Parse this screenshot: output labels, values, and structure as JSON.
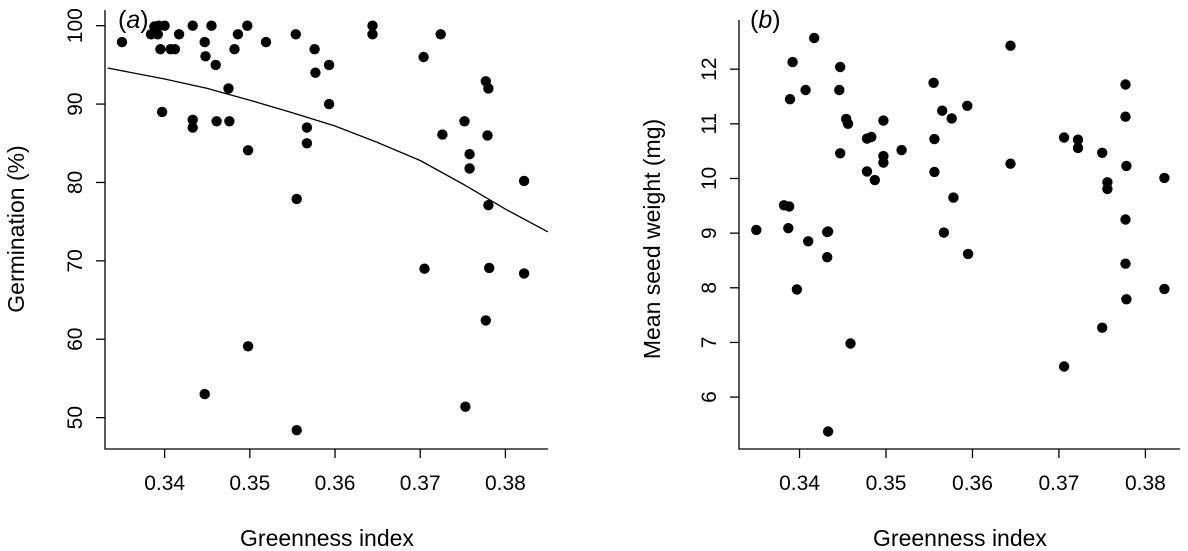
{
  "chart_data": [
    {
      "type": "scatter",
      "panel_label_open": "(",
      "panel_label_letter": "a",
      "panel_label_close": ")",
      "xlabel": "Greenness index",
      "ylabel": "Germination (%)",
      "xlim": [
        0.333,
        0.385
      ],
      "ylim": [
        46,
        102
      ],
      "xticks": [
        0.34,
        0.35,
        0.36,
        0.37,
        0.38
      ],
      "xtick_labels": [
        "0.34",
        "0.35",
        "0.36",
        "0.37",
        "0.38"
      ],
      "yticks": [
        50,
        60,
        70,
        80,
        90,
        100
      ],
      "ytick_labels": [
        "50",
        "60",
        "70",
        "80",
        "90",
        "100"
      ],
      "point_color": "#000000",
      "points": [
        [
          0.335,
          97.9
        ],
        [
          0.3384,
          98.9
        ],
        [
          0.3388,
          99.9
        ],
        [
          0.339,
          99.4
        ],
        [
          0.3392,
          98.9
        ],
        [
          0.3393,
          100.0
        ],
        [
          0.3395,
          97.0
        ],
        [
          0.3397,
          89.0
        ],
        [
          0.34,
          100.0
        ],
        [
          0.3407,
          97.0
        ],
        [
          0.3412,
          97.0
        ],
        [
          0.3417,
          98.9
        ],
        [
          0.3433,
          100.0
        ],
        [
          0.3433,
          88.0
        ],
        [
          0.3433,
          87.0
        ],
        [
          0.3447,
          97.9
        ],
        [
          0.3448,
          96.1
        ],
        [
          0.3455,
          100.0
        ],
        [
          0.346,
          95.0
        ],
        [
          0.3461,
          87.8
        ],
        [
          0.3475,
          92.0
        ],
        [
          0.3476,
          87.8
        ],
        [
          0.3482,
          97.0
        ],
        [
          0.3486,
          98.9
        ],
        [
          0.3497,
          100.0
        ],
        [
          0.3498,
          84.1
        ],
        [
          0.3498,
          59.1
        ],
        [
          0.3447,
          53.0
        ],
        [
          0.3519,
          97.9
        ],
        [
          0.3554,
          98.9
        ],
        [
          0.3555,
          77.9
        ],
        [
          0.3555,
          48.4
        ],
        [
          0.3567,
          87.0
        ],
        [
          0.3567,
          85.0
        ],
        [
          0.3576,
          97.0
        ],
        [
          0.3577,
          94.0
        ],
        [
          0.3593,
          95.0
        ],
        [
          0.3593,
          90.0
        ],
        [
          0.3644,
          100.0
        ],
        [
          0.3644,
          98.9
        ],
        [
          0.3704,
          96.0
        ],
        [
          0.3705,
          69.0
        ],
        [
          0.3724,
          98.9
        ],
        [
          0.3726,
          86.1
        ],
        [
          0.3752,
          87.8
        ],
        [
          0.3753,
          51.4
        ],
        [
          0.3758,
          83.6
        ],
        [
          0.3758,
          81.8
        ],
        [
          0.3777,
          92.9
        ],
        [
          0.3779,
          86.0
        ],
        [
          0.378,
          92.0
        ],
        [
          0.378,
          77.1
        ],
        [
          0.3781,
          69.1
        ],
        [
          0.3777,
          62.4
        ],
        [
          0.3822,
          80.2
        ],
        [
          0.3822,
          68.4
        ]
      ],
      "fit_curve": {
        "color": "#000000",
        "x": [
          0.3333,
          0.34,
          0.345,
          0.35,
          0.355,
          0.36,
          0.365,
          0.37,
          0.375,
          0.38,
          0.385
        ],
        "y": [
          94.6,
          93.2,
          92.0,
          90.5,
          88.9,
          87.2,
          85.1,
          82.8,
          79.8,
          76.6,
          73.7
        ]
      }
    },
    {
      "type": "scatter",
      "panel_label_open": "(",
      "panel_label_letter": "b",
      "panel_label_close": ")",
      "xlabel": "Greenness index",
      "ylabel": "Mean seed weight (mg)",
      "xlim": [
        0.333,
        0.384
      ],
      "ylim": [
        5.05,
        12.9
      ],
      "xticks": [
        0.34,
        0.35,
        0.36,
        0.37,
        0.38
      ],
      "xtick_labels": [
        "0.34",
        "0.35",
        "0.36",
        "0.37",
        "0.38"
      ],
      "yticks": [
        6,
        7,
        8,
        9,
        10,
        11,
        12
      ],
      "ytick_labels": [
        "6",
        "7",
        "8",
        "9",
        "10",
        "11",
        "12"
      ],
      "point_color": "#000000",
      "points": [
        [
          0.335,
          9.06
        ],
        [
          0.3382,
          9.51
        ],
        [
          0.3388,
          9.49
        ],
        [
          0.3387,
          9.09
        ],
        [
          0.3389,
          11.45
        ],
        [
          0.3392,
          12.13
        ],
        [
          0.3397,
          7.97
        ],
        [
          0.3407,
          11.62
        ],
        [
          0.341,
          8.85
        ],
        [
          0.3417,
          12.57
        ],
        [
          0.3432,
          9.02
        ],
        [
          0.3432,
          8.56
        ],
        [
          0.3433,
          9.03
        ],
        [
          0.3433,
          5.37
        ],
        [
          0.3446,
          11.62
        ],
        [
          0.3447,
          12.04
        ],
        [
          0.3447,
          10.46
        ],
        [
          0.3454,
          11.09
        ],
        [
          0.3456,
          11.0
        ],
        [
          0.3459,
          6.98
        ],
        [
          0.3478,
          10.73
        ],
        [
          0.3478,
          10.13
        ],
        [
          0.3483,
          10.76
        ],
        [
          0.3487,
          9.97
        ],
        [
          0.3497,
          11.06
        ],
        [
          0.3497,
          10.41
        ],
        [
          0.3497,
          10.29
        ],
        [
          0.3518,
          10.52
        ],
        [
          0.3555,
          11.75
        ],
        [
          0.3556,
          10.72
        ],
        [
          0.3556,
          10.12
        ],
        [
          0.3565,
          11.24
        ],
        [
          0.3567,
          9.01
        ],
        [
          0.3576,
          11.1
        ],
        [
          0.3578,
          9.65
        ],
        [
          0.3594,
          11.33
        ],
        [
          0.3595,
          8.62
        ],
        [
          0.3644,
          12.43
        ],
        [
          0.3644,
          10.27
        ],
        [
          0.3706,
          10.75
        ],
        [
          0.3706,
          6.56
        ],
        [
          0.3722,
          10.71
        ],
        [
          0.3722,
          10.56
        ],
        [
          0.375,
          10.47
        ],
        [
          0.375,
          7.27
        ],
        [
          0.3756,
          9.93
        ],
        [
          0.3756,
          9.81
        ],
        [
          0.3777,
          11.72
        ],
        [
          0.3777,
          11.13
        ],
        [
          0.3778,
          10.23
        ],
        [
          0.3777,
          9.25
        ],
        [
          0.3777,
          8.44
        ],
        [
          0.3778,
          7.79
        ],
        [
          0.3822,
          10.01
        ],
        [
          0.3822,
          7.98
        ]
      ]
    }
  ]
}
